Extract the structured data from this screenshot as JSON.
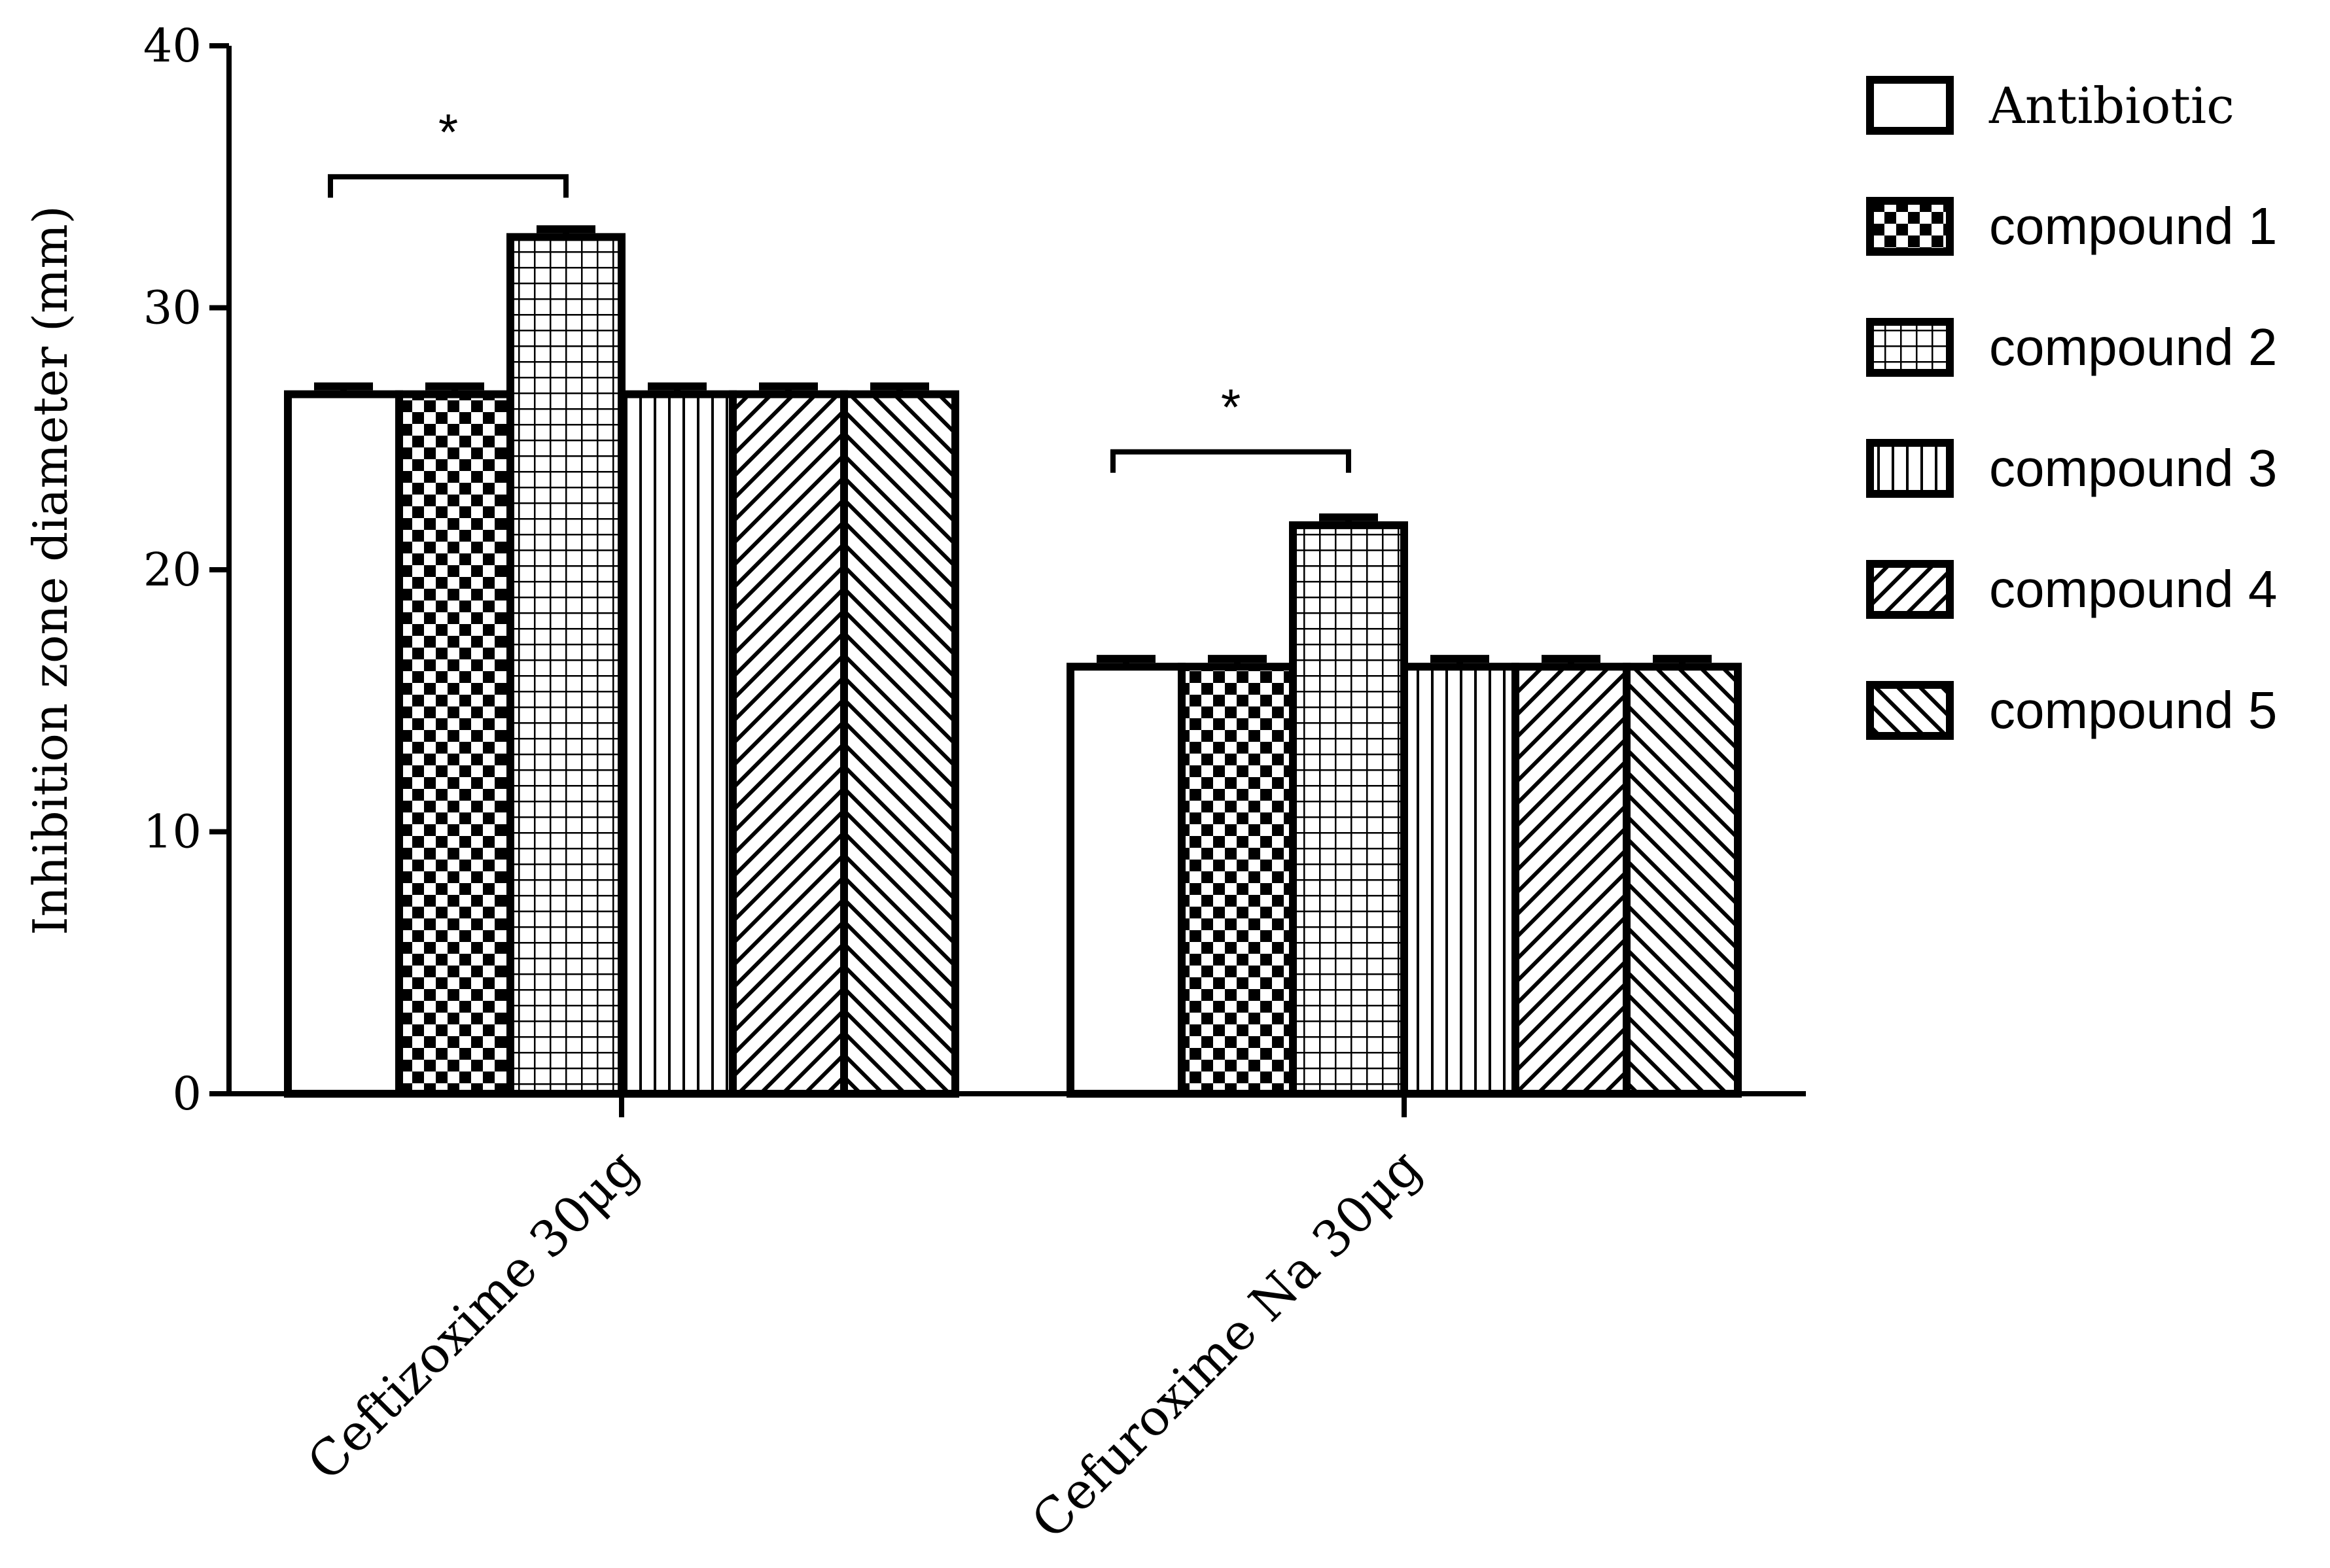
{
  "chart_data": {
    "type": "bar",
    "title": "",
    "xlabel": "",
    "ylabel": "Inhibition zone diameter (mm)",
    "ylim": [
      0,
      40
    ],
    "yticks": [
      0,
      10,
      20,
      30,
      40
    ],
    "grid": false,
    "legend_position": "top-right",
    "categories": [
      "Ceftizoxime 30μg",
      "Cefuroxime Na 30μg"
    ],
    "series": [
      {
        "name": "Antibiotic",
        "pattern": "none",
        "values": [
          26.7,
          16.3
        ],
        "error": [
          0.3,
          0.3
        ]
      },
      {
        "name": "compound 1",
        "pattern": "checker",
        "values": [
          26.7,
          16.3
        ],
        "error": [
          0.3,
          0.3
        ]
      },
      {
        "name": "compound 2",
        "pattern": "grid",
        "values": [
          32.7,
          21.7
        ],
        "error": [
          0.3,
          0.3
        ]
      },
      {
        "name": "compound 3",
        "pattern": "vertical",
        "values": [
          26.7,
          16.3
        ],
        "error": [
          0.3,
          0.3
        ]
      },
      {
        "name": "compound 4",
        "pattern": "diagonal-up",
        "values": [
          26.7,
          16.3
        ],
        "error": [
          0.3,
          0.3
        ]
      },
      {
        "name": "compound 5",
        "pattern": "diagonal-down",
        "values": [
          26.7,
          16.3
        ],
        "error": [
          0.3,
          0.3
        ]
      }
    ],
    "annotations": [
      {
        "text": "*",
        "category": 0,
        "from_series": 0,
        "to_series": 2,
        "y": 35
      },
      {
        "text": "*",
        "category": 1,
        "from_series": 0,
        "to_series": 2,
        "y": 24.5
      }
    ]
  }
}
